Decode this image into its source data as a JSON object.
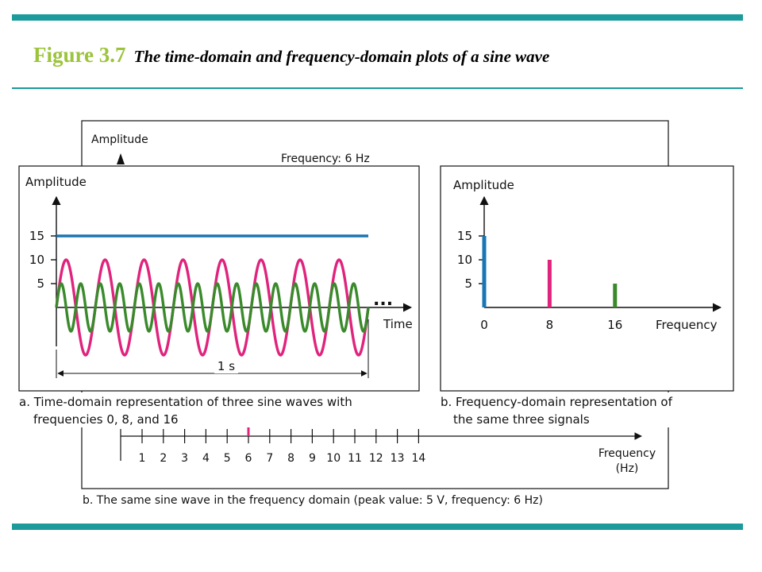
{
  "figure": {
    "label": "Figure 3.7",
    "caption": "The time-domain and frequency-domain plots of a sine wave",
    "accent_color": "#1c9a9c",
    "label_color": "#9bc43a"
  },
  "background_panel": {
    "y_axis_label": "Amplitude",
    "frequency_note": "Frequency: 6 Hz",
    "freq_ticks": [
      "1",
      "2",
      "3",
      "4",
      "5",
      "6",
      "7",
      "8",
      "9",
      "10",
      "11",
      "12",
      "13",
      "14"
    ],
    "highlight_tick": "6",
    "x_axis_label_line1": "Frequency",
    "x_axis_label_line2": "(Hz)",
    "caption": "b. The same sine wave in the frequency domain (peak value: 5 V, frequency: 6 Hz)"
  },
  "time_domain": {
    "y_axis_label": "Amplitude",
    "x_axis_label": "Time",
    "ellipsis": "...",
    "duration_label": "1 s",
    "caption_line1": "a. Time-domain representation of three sine waves with",
    "caption_line2": "frequencies 0, 8, and 16"
  },
  "frequency_domain": {
    "y_axis_label": "Amplitude",
    "x_axis_label": "Frequency",
    "caption_line1": "b. Frequency-domain representation of",
    "caption_line2": "the same three signals"
  },
  "chart_data": [
    {
      "type": "line",
      "yticks": [
        "5",
        "10",
        "15"
      ],
      "series": [
        {
          "frequency": 0,
          "amplitude": 15,
          "color": "#1a75b4"
        },
        {
          "frequency": 8,
          "amplitude": 10,
          "color": "#e0237c"
        },
        {
          "frequency": 16,
          "amplitude": 5,
          "color": "#3a8a2c"
        }
      ]
    },
    {
      "type": "bar",
      "categories": [
        "0",
        "8",
        "16"
      ],
      "values": [
        15,
        10,
        5
      ],
      "colors": [
        "#1a75b4",
        "#e0237c",
        "#3a8a2c"
      ],
      "yticks": [
        "5",
        "10",
        "15"
      ]
    }
  ]
}
